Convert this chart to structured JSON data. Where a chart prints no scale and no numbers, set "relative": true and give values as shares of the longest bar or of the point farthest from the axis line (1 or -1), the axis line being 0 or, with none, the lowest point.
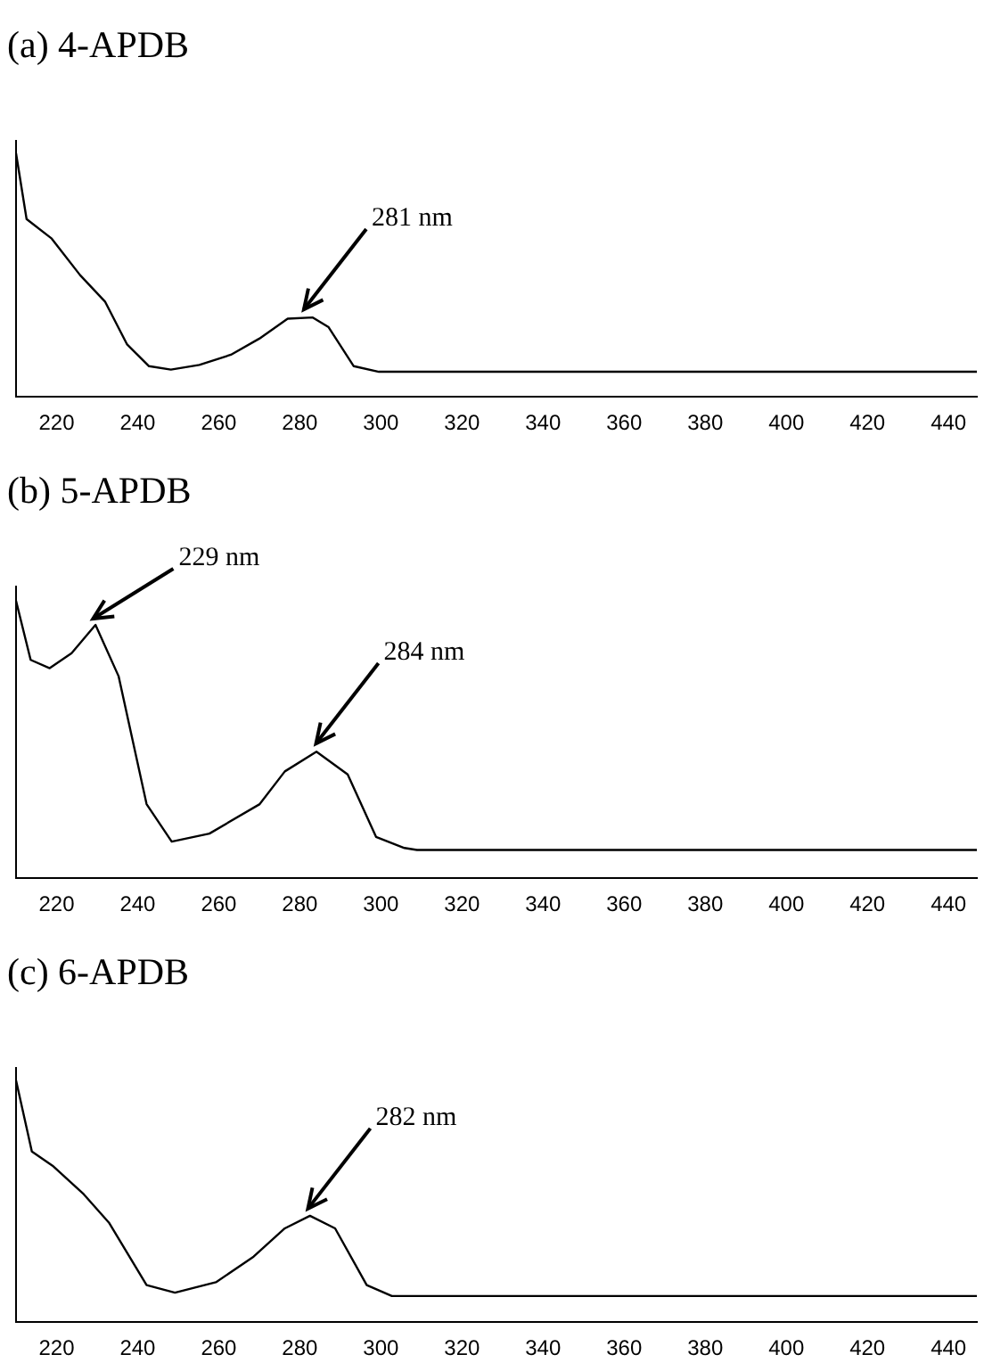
{
  "chart_data": [
    {
      "type": "line",
      "title": "(a) 4-APDB",
      "relative": true,
      "tick_labels": "x",
      "color": "#000000",
      "xlim": [
        210,
        447
      ],
      "xticks": [
        220,
        240,
        260,
        280,
        300,
        320,
        340,
        360,
        380,
        400,
        420,
        440
      ],
      "x": [
        210,
        212.6,
        218.8,
        225.8,
        232,
        237.4,
        242.8,
        248.2,
        255.2,
        263,
        270,
        277,
        283.2,
        287.1,
        293.3,
        299.5,
        447
      ],
      "values": [
        1.0,
        0.73,
        0.65,
        0.5,
        0.39,
        0.215,
        0.126,
        0.112,
        0.131,
        0.173,
        0.239,
        0.321,
        0.326,
        0.286,
        0.126,
        0.103,
        0.103
      ],
      "annotations": [
        {
          "text": "281 nm",
          "x": 281,
          "y": 0.33
        }
      ]
    },
    {
      "type": "line",
      "title": "(b) 5-APDB",
      "relative": true,
      "tick_labels": "x",
      "color": "#000000",
      "xlim": [
        210,
        447
      ],
      "xticks": [
        220,
        240,
        260,
        280,
        300,
        320,
        340,
        360,
        380,
        400,
        420,
        440
      ],
      "x": [
        210,
        213.6,
        218.3,
        223.7,
        229.6,
        235.3,
        242.2,
        248.4,
        257.7,
        270.1,
        276.3,
        284.1,
        291.8,
        298.8,
        305.8,
        308.9,
        447
      ],
      "values": [
        1.0,
        0.787,
        0.757,
        0.811,
        0.913,
        0.728,
        0.267,
        0.132,
        0.161,
        0.267,
        0.385,
        0.456,
        0.374,
        0.149,
        0.109,
        0.102,
        0.102
      ],
      "annotations": [
        {
          "text": "229 nm",
          "x": 229,
          "y": 0.91
        },
        {
          "text": "284 nm",
          "x": 284,
          "y": 0.46
        }
      ]
    },
    {
      "type": "line",
      "title": "(c) 6-APDB",
      "relative": true,
      "tick_labels": "x",
      "color": "#000000",
      "xlim": [
        210,
        447
      ],
      "xticks": [
        220,
        240,
        260,
        280,
        300,
        320,
        340,
        360,
        380,
        400,
        420,
        440
      ],
      "x": [
        210,
        213.9,
        219,
        226.7,
        232.9,
        242.2,
        249.2,
        259.3,
        268.6,
        276.3,
        282.5,
        288.7,
        296.5,
        302.7,
        447
      ],
      "values": [
        1.0,
        0.706,
        0.647,
        0.529,
        0.412,
        0.153,
        0.122,
        0.165,
        0.271,
        0.388,
        0.44,
        0.388,
        0.153,
        0.108,
        0.108
      ],
      "annotations": [
        {
          "text": "282 nm",
          "x": 282,
          "y": 0.44
        }
      ]
    }
  ]
}
